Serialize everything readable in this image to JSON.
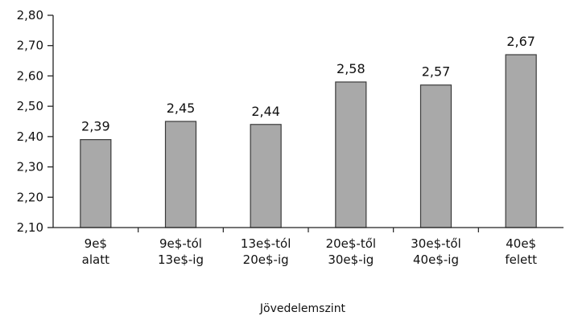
{
  "chart_data": {
    "type": "bar",
    "categories": [
      [
        "9e$",
        "alatt"
      ],
      [
        "9e$-tól",
        "13e$-ig"
      ],
      [
        "13e$-tól",
        "20e$-ig"
      ],
      [
        "20e$-től",
        "30e$-ig"
      ],
      [
        "30e$-től",
        "40e$-ig"
      ],
      [
        "40e$",
        "felett"
      ]
    ],
    "values": [
      2.39,
      2.45,
      2.44,
      2.58,
      2.57,
      2.67
    ],
    "data_labels": [
      "2,39",
      "2,45",
      "2,44",
      "2,58",
      "2,57",
      "2,67"
    ],
    "ylim": [
      2.1,
      2.8
    ],
    "yticks": [
      2.1,
      2.2,
      2.3,
      2.4,
      2.5,
      2.6,
      2.7,
      2.8
    ],
    "ytick_labels": [
      "2,10",
      "2,20",
      "2,30",
      "2,40",
      "2,50",
      "2,60",
      "2,70",
      "2,80"
    ],
    "xlabel": "Jövedelemszint",
    "ylabel": "",
    "title": "",
    "grid": false,
    "legend": "none",
    "colors": {
      "bar_fill": "#a9a9a9",
      "bar_stroke": "#3a3a3a",
      "axis": "#222222"
    }
  }
}
